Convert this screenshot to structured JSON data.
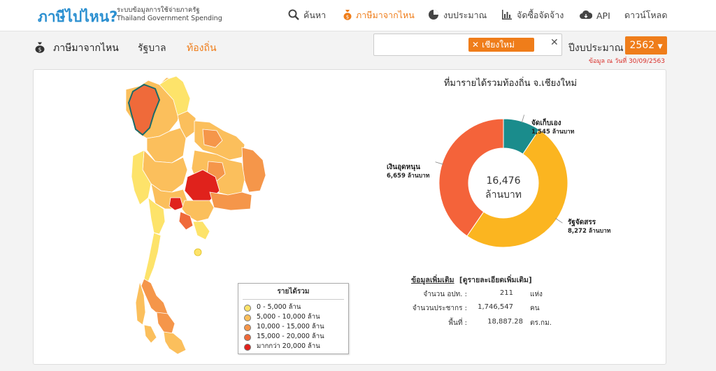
{
  "header": {
    "logo": "ภาษีไปไหน?",
    "tagline_th": "ระบบข้อมูลการใช้จ่ายภาครัฐ",
    "tagline_en": "Thailand Government Spending",
    "nav": [
      {
        "label": "ค้นหา",
        "icon": "search-icon"
      },
      {
        "label": "ภาษีมาจากไหน",
        "icon": "money-bag-icon"
      },
      {
        "label": "งบประมาณ",
        "icon": "pie-chart-icon"
      },
      {
        "label": "จัดซื้อจัดจ้าง",
        "icon": "bar-chart-icon"
      },
      {
        "label": "API",
        "icon": "cloud-icon"
      },
      {
        "label": "ดาวน์โหลด",
        "icon": ""
      }
    ]
  },
  "subnav": {
    "title": "ภาษีมาจากไหน",
    "tabs": [
      "รัฐบาล",
      "ท้องถิ่น"
    ],
    "search_chip": "เชียงใหม่",
    "year_label": "ปีงบประมาณ",
    "year": "2562",
    "as_of": "ข้อมูล ณ วันที่ 30/09/2563"
  },
  "legend": {
    "title": "รายได้รวม",
    "items": [
      {
        "label": "0 - 5,000 ล้าน",
        "color": "#fde36a"
      },
      {
        "label": "5,000 - 10,000 ล้าน",
        "color": "#fbbf5c"
      },
      {
        "label": "10,000 - 15,000 ล้าน",
        "color": "#f5964a"
      },
      {
        "label": "15,000 - 20,000 ล้าน",
        "color": "#ef6a3a"
      },
      {
        "label": "มากกว่า 20,000 ล้าน",
        "color": "#e0221c"
      }
    ]
  },
  "chart_data": {
    "type": "pie",
    "title": "ที่มารายได้รวมท้องถิ่น จ.เชียงใหม่",
    "center_value": "16,476",
    "center_unit": "ล้านบาท",
    "slices": [
      {
        "label": "จัดเก็บเอง",
        "value": 1545,
        "value_text": "1,545 ล้านบาท",
        "color": "#1a8c8c"
      },
      {
        "label": "รัฐจัดสรร",
        "value": 8272,
        "value_text": "8,272 ล้านบาท",
        "color": "#fbb520"
      },
      {
        "label": "เงินอุดหนุน",
        "value": 6659,
        "value_text": "6,659 ล้านบาท",
        "color": "#f4633a"
      }
    ]
  },
  "info": {
    "heading": "ข้อมูลเพิ่มเติม",
    "link": "[ดูรายละเอียดเพิ่มเติม]",
    "rows": [
      {
        "label": "จำนวน อปท. :",
        "value": "211",
        "unit": "แห่ง"
      },
      {
        "label": "จำนวนประชากร :",
        "value": "1,746,547",
        "unit": "คน"
      },
      {
        "label": "พื้นที่ :",
        "value": "18,887.28",
        "unit": "ตร.กม."
      }
    ]
  }
}
